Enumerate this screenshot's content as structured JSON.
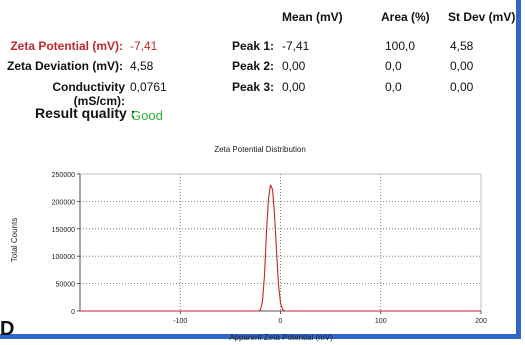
{
  "table": {
    "headers": {
      "mean": "Mean (mV)",
      "area": "Area (%)",
      "stdev": "St Dev (mV)"
    },
    "summary": [
      {
        "label": "Zeta Potential (mV):",
        "value": "-7,41"
      },
      {
        "label": "Zeta Deviation (mV):",
        "value": "4,58"
      },
      {
        "label": "Conductivity (mS/cm):",
        "value": "0,0761"
      }
    ],
    "peaks": [
      {
        "label": "Peak 1:",
        "mean": "-7,41",
        "area": "100,0",
        "stdev": "4,58"
      },
      {
        "label": "Peak 2:",
        "mean": "0,00",
        "area": "0,0",
        "stdev": "0,00"
      },
      {
        "label": "Peak 3:",
        "mean": "0,00",
        "area": "0,0",
        "stdev": "0,00"
      }
    ]
  },
  "result_quality": {
    "label": "Result quality :",
    "value": "Good"
  },
  "corner_label": "D",
  "colors": {
    "highlight": "#c0272d",
    "good": "#2fb52f",
    "curve": "#c0272d",
    "frame": "#2f66c9"
  },
  "chart_data": {
    "type": "line",
    "title": "Zeta Potential Distribution",
    "xlabel": "Apparent Zeta Potential (mV)",
    "ylabel": "Total Counts",
    "xlim": [
      -200,
      200
    ],
    "ylim": [
      0,
      250000
    ],
    "xticks": [
      -100,
      0,
      100,
      200
    ],
    "yticks": [
      0,
      50000,
      100000,
      150000,
      200000,
      250000
    ],
    "grid": true,
    "series": [
      {
        "x": [
          -200,
          -22,
          -20,
          -18,
          -16,
          -14,
          -12,
          -10,
          -8,
          -6,
          -4,
          -2,
          0,
          2,
          4,
          6,
          200
        ],
        "y": [
          0,
          0,
          2000,
          18000,
          65000,
          145000,
          205000,
          230000,
          222000,
          178000,
          110000,
          48000,
          15000,
          3000,
          0,
          0,
          0
        ]
      }
    ]
  }
}
